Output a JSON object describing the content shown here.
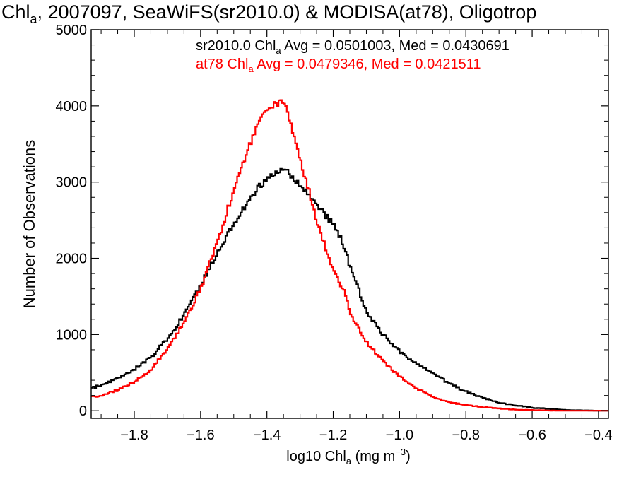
{
  "chart_data": {
    "type": "line",
    "step": true,
    "title": {
      "prefix": "Chl",
      "sub": "a",
      "rest": ", 2007097, SeaWiFS(sr2010.0) & MODISA(at78), Oligotrop"
    },
    "xlabel": {
      "prefix": "log10 Chl",
      "sub": "a",
      "units": " (mg m",
      "sup": "−3",
      "close": ")"
    },
    "ylabel": "Number of Observations",
    "xlim": [
      -1.93,
      -0.37
    ],
    "ylim": [
      -100,
      5000
    ],
    "x_ticks": [
      {
        "v": -1.8,
        "label": "−1.8"
      },
      {
        "v": -1.6,
        "label": "−1.6"
      },
      {
        "v": -1.4,
        "label": "−1.4"
      },
      {
        "v": -1.2,
        "label": "−1.2"
      },
      {
        "v": -1.0,
        "label": "−1.0"
      },
      {
        "v": -0.8,
        "label": "−0.8"
      },
      {
        "v": -0.6,
        "label": "−0.6"
      },
      {
        "v": -0.4,
        "label": "−0.4"
      }
    ],
    "y_ticks": [
      {
        "v": 0,
        "label": "0"
      },
      {
        "v": 1000,
        "label": "1000"
      },
      {
        "v": 2000,
        "label": "2000"
      },
      {
        "v": 3000,
        "label": "3000"
      },
      {
        "v": 4000,
        "label": "4000"
      },
      {
        "v": 5000,
        "label": "5000"
      }
    ],
    "grid": false,
    "legend": [
      {
        "color": "#000000",
        "name": "sr2010.0",
        "label_pre": "sr2010.0 Chl",
        "label_sub": "a",
        "label_post": " Avg = 0.0501003, Med = 0.0430691"
      },
      {
        "color": "#ff0000",
        "name": "at78",
        "label_pre": "at78 Chl",
        "label_sub": "a",
        "label_post": " Avg = 0.0479346, Med = 0.0421511"
      }
    ],
    "legend_placement": "top-right",
    "series": [
      {
        "name": "sr2010.0",
        "color": "#000000",
        "points": [
          [
            -1.93,
            300
          ],
          [
            -1.9,
            330
          ],
          [
            -1.85,
            420
          ],
          [
            -1.8,
            540
          ],
          [
            -1.75,
            700
          ],
          [
            -1.7,
            950
          ],
          [
            -1.65,
            1250
          ],
          [
            -1.6,
            1650
          ],
          [
            -1.55,
            2050
          ],
          [
            -1.5,
            2450
          ],
          [
            -1.45,
            2800
          ],
          [
            -1.4,
            3050
          ],
          [
            -1.37,
            3150
          ],
          [
            -1.35,
            3170
          ],
          [
            -1.33,
            3100
          ],
          [
            -1.3,
            2950
          ],
          [
            -1.27,
            2800
          ],
          [
            -1.25,
            2700
          ],
          [
            -1.2,
            2450
          ],
          [
            -1.17,
            2200
          ],
          [
            -1.15,
            1900
          ],
          [
            -1.12,
            1550
          ],
          [
            -1.1,
            1300
          ],
          [
            -1.05,
            1000
          ],
          [
            -1.0,
            780
          ],
          [
            -0.95,
            620
          ],
          [
            -0.9,
            490
          ],
          [
            -0.85,
            360
          ],
          [
            -0.8,
            250
          ],
          [
            -0.75,
            170
          ],
          [
            -0.7,
            110
          ],
          [
            -0.65,
            70
          ],
          [
            -0.6,
            40
          ],
          [
            -0.55,
            25
          ],
          [
            -0.5,
            10
          ],
          [
            -0.45,
            5
          ],
          [
            -0.4,
            0
          ],
          [
            -0.37,
            0
          ]
        ]
      },
      {
        "name": "at78",
        "color": "#ff0000",
        "points": [
          [
            -1.93,
            180
          ],
          [
            -1.9,
            200
          ],
          [
            -1.85,
            270
          ],
          [
            -1.8,
            380
          ],
          [
            -1.75,
            540
          ],
          [
            -1.7,
            800
          ],
          [
            -1.65,
            1150
          ],
          [
            -1.6,
            1600
          ],
          [
            -1.55,
            2200
          ],
          [
            -1.5,
            2900
          ],
          [
            -1.45,
            3500
          ],
          [
            -1.42,
            3850
          ],
          [
            -1.4,
            3950
          ],
          [
            -1.38,
            4000
          ],
          [
            -1.36,
            4050
          ],
          [
            -1.34,
            3950
          ],
          [
            -1.32,
            3650
          ],
          [
            -1.3,
            3300
          ],
          [
            -1.28,
            3000
          ],
          [
            -1.25,
            2500
          ],
          [
            -1.22,
            2100
          ],
          [
            -1.2,
            1850
          ],
          [
            -1.17,
            1600
          ],
          [
            -1.15,
            1300
          ],
          [
            -1.12,
            1050
          ],
          [
            -1.1,
            900
          ],
          [
            -1.05,
            650
          ],
          [
            -1.0,
            450
          ],
          [
            -0.95,
            300
          ],
          [
            -0.9,
            180
          ],
          [
            -0.85,
            110
          ],
          [
            -0.8,
            75
          ],
          [
            -0.75,
            50
          ],
          [
            -0.7,
            30
          ],
          [
            -0.65,
            15
          ],
          [
            -0.6,
            8
          ],
          [
            -0.55,
            3
          ],
          [
            -0.5,
            0
          ],
          [
            -0.37,
            0
          ]
        ]
      }
    ]
  }
}
